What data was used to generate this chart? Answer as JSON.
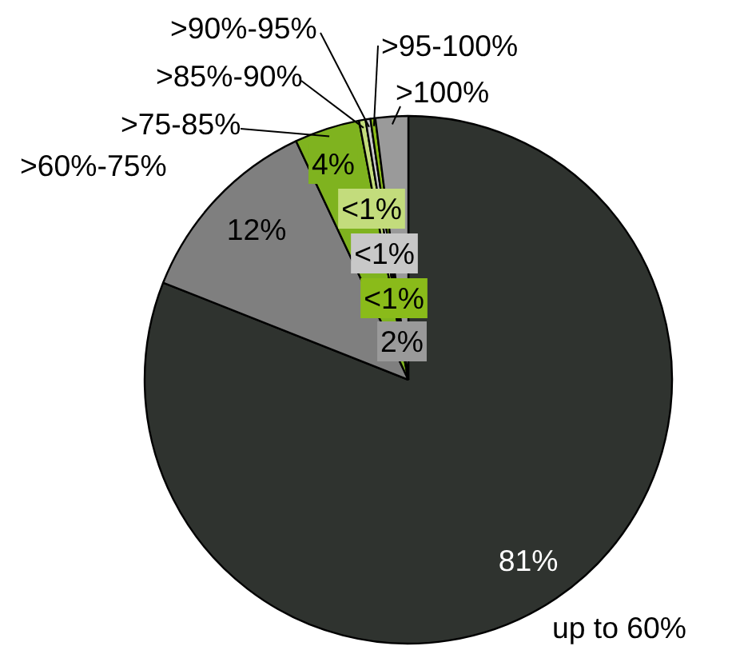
{
  "chart_data": {
    "type": "pie",
    "categories": [
      "up to 60%",
      ">60%-75%",
      ">75-85%",
      ">85%-90%",
      ">90%-95%",
      ">95-100%",
      ">100%"
    ],
    "values": [
      81,
      12,
      4,
      0.4,
      0.3,
      0.3,
      2
    ],
    "value_labels": [
      "81%",
      "12%",
      "4%",
      "<1%",
      "<1%",
      "<1%",
      "2%"
    ],
    "colors": [
      "#2f332f",
      "#7f7f7f",
      "#7fb31f",
      "#c3dc7c",
      "#c8c8c8",
      "#8abb1a",
      "#9a9a9a"
    ]
  }
}
